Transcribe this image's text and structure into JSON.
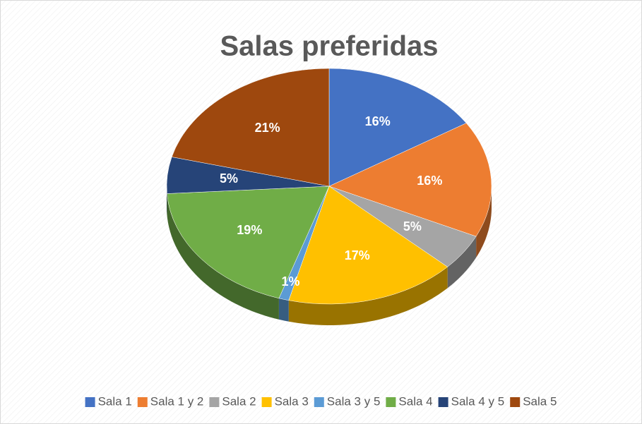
{
  "chart_data": {
    "type": "pie",
    "title": "Salas preferidas",
    "categories": [
      "Sala 1",
      "Sala 1 y 2",
      "Sala 2",
      "Sala 3",
      "Sala 3 y 5",
      "Sala 4",
      "Sala 4 y 5",
      "Sala 5"
    ],
    "values": [
      16,
      16,
      5,
      17,
      1,
      19,
      5,
      21
    ],
    "value_labels": [
      "16%",
      "16%",
      "5%",
      "17%",
      "1%",
      "19%",
      "5%",
      "21%"
    ],
    "colors": [
      "#4472c4",
      "#ed7d31",
      "#a5a5a5",
      "#ffc000",
      "#5b9bd5",
      "#70ad47",
      "#264478",
      "#9e480e"
    ],
    "legend": "bottom"
  }
}
